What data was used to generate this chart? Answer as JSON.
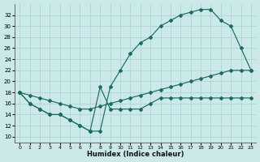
{
  "xlabel": "Humidex (Indice chaleur)",
  "bg_color": "#cce9e9",
  "grid_color": "#b0d8d8",
  "line_color": "#1a6b60",
  "xlim": [
    -0.5,
    23.5
  ],
  "ylim": [
    9,
    34
  ],
  "xticks": [
    0,
    1,
    2,
    3,
    4,
    5,
    6,
    7,
    8,
    9,
    10,
    11,
    12,
    13,
    14,
    15,
    16,
    17,
    18,
    19,
    20,
    21,
    22,
    23
  ],
  "yticks": [
    10,
    12,
    14,
    16,
    18,
    20,
    22,
    24,
    26,
    28,
    30,
    32
  ],
  "line_straight_x": [
    0,
    1,
    2,
    3,
    4,
    5,
    6,
    7,
    8,
    9,
    10,
    11,
    12,
    13,
    14,
    15,
    16,
    17,
    18,
    19,
    20,
    21,
    22,
    23
  ],
  "line_straight_y": [
    18,
    17.5,
    17,
    16.5,
    16,
    15.5,
    15,
    15,
    15.5,
    16,
    16.5,
    17,
    17.5,
    18,
    18.5,
    19,
    19.5,
    20,
    20.5,
    21,
    21.5,
    22,
    22,
    22
  ],
  "line_jagged_x": [
    0,
    1,
    2,
    3,
    4,
    5,
    6,
    7,
    8,
    9,
    10,
    11,
    12,
    13,
    14,
    15,
    16,
    17,
    18,
    19,
    20,
    21,
    22,
    23
  ],
  "line_jagged_y": [
    18,
    16,
    15,
    14,
    14,
    13,
    12,
    11,
    19,
    15,
    15,
    15,
    15,
    16,
    17,
    17,
    17,
    17,
    17,
    17,
    17,
    17,
    17,
    17
  ],
  "line_peak_x": [
    0,
    1,
    2,
    3,
    4,
    5,
    6,
    7,
    8,
    9,
    10,
    11,
    12,
    13,
    14,
    15,
    16,
    17,
    18,
    19,
    20,
    21,
    22,
    23
  ],
  "line_peak_y": [
    18,
    16,
    15,
    14,
    14,
    13,
    12,
    11,
    11,
    19,
    22,
    25,
    27,
    28,
    30,
    31,
    32,
    32.5,
    33,
    33,
    31,
    30,
    26,
    22
  ]
}
